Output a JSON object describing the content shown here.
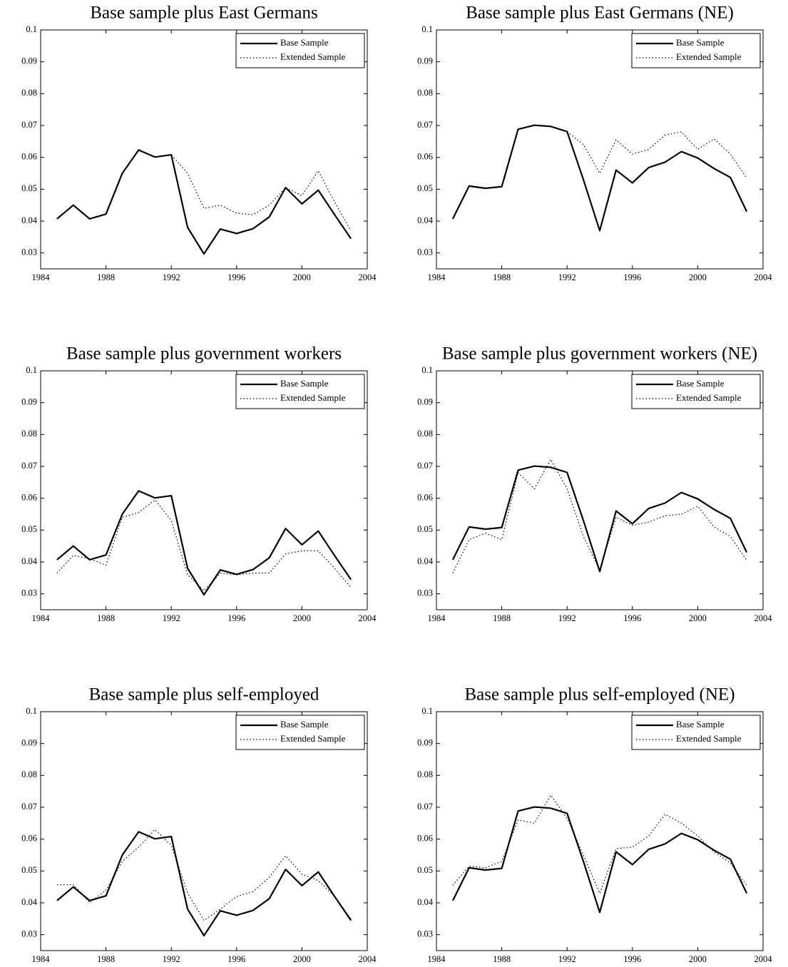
{
  "chart_data": [
    {
      "type": "line",
      "title": "Base sample plus East Germans",
      "x": [
        1985,
        1986,
        1987,
        1988,
        1989,
        1990,
        1991,
        1992,
        1993,
        1994,
        1995,
        1996,
        1997,
        1998,
        1999,
        2000,
        2001,
        2002,
        2003
      ],
      "series": [
        {
          "name": "Base Sample",
          "color": "#000000",
          "style": "solid",
          "values": [
            0.0407,
            0.045,
            0.0407,
            0.0422,
            0.055,
            0.0623,
            0.0601,
            0.0608,
            0.038,
            0.0297,
            0.0375,
            0.0361,
            0.0376,
            0.0413,
            0.0505,
            0.0454,
            0.0497,
            0.042,
            0.0345
          ]
        },
        {
          "name": "Extended Sample",
          "color": "#000000",
          "style": "dotted",
          "values": [
            0.0407,
            0.045,
            0.0407,
            0.0422,
            0.055,
            0.0623,
            0.0601,
            0.0608,
            0.055,
            0.044,
            0.045,
            0.0425,
            0.042,
            0.045,
            0.0505,
            0.048,
            0.0558,
            0.046,
            0.037
          ]
        }
      ],
      "xlim": [
        1984,
        2004
      ],
      "xticks": [
        1984,
        1988,
        1992,
        1996,
        2000,
        2004
      ],
      "ylim": [
        0.025,
        0.1
      ],
      "yticks": [
        0.03,
        0.04,
        0.05,
        0.06,
        0.07,
        0.08,
        0.09,
        0.1
      ],
      "legend": "upper right"
    },
    {
      "type": "line",
      "title": "Base sample plus East Germans (NE)",
      "x": [
        1985,
        1986,
        1987,
        1988,
        1989,
        1990,
        1991,
        1992,
        1993,
        1994,
        1995,
        1996,
        1997,
        1998,
        1999,
        2000,
        2001,
        2002,
        2003
      ],
      "series": [
        {
          "name": "Base Sample",
          "color": "#000000",
          "style": "solid",
          "values": [
            0.0407,
            0.051,
            0.0503,
            0.0508,
            0.0688,
            0.0701,
            0.0697,
            0.0681,
            0.053,
            0.037,
            0.056,
            0.052,
            0.0568,
            0.0585,
            0.0618,
            0.0598,
            0.0565,
            0.0537,
            0.043
          ]
        },
        {
          "name": "Extended Sample",
          "color": "#000000",
          "style": "dotted",
          "values": [
            0.0407,
            0.051,
            0.0503,
            0.0508,
            0.0688,
            0.0701,
            0.0697,
            0.0681,
            0.064,
            0.055,
            0.0655,
            0.061,
            0.0625,
            0.067,
            0.068,
            0.0625,
            0.0658,
            0.061,
            0.0535
          ]
        }
      ],
      "xlim": [
        1984,
        2004
      ],
      "xticks": [
        1984,
        1988,
        1992,
        1996,
        2000,
        2004
      ],
      "ylim": [
        0.025,
        0.1
      ],
      "yticks": [
        0.03,
        0.04,
        0.05,
        0.06,
        0.07,
        0.08,
        0.09,
        0.1
      ],
      "legend": "upper right"
    },
    {
      "type": "line",
      "title": "Base sample plus government workers",
      "x": [
        1985,
        1986,
        1987,
        1988,
        1989,
        1990,
        1991,
        1992,
        1993,
        1994,
        1995,
        1996,
        1997,
        1998,
        1999,
        2000,
        2001,
        2002,
        2003
      ],
      "series": [
        {
          "name": "Base Sample",
          "color": "#000000",
          "style": "solid",
          "values": [
            0.0407,
            0.045,
            0.0407,
            0.0422,
            0.055,
            0.0623,
            0.0601,
            0.0608,
            0.038,
            0.0297,
            0.0375,
            0.0361,
            0.0376,
            0.0413,
            0.0505,
            0.0454,
            0.0497,
            0.042,
            0.0345
          ]
        },
        {
          "name": "Extended Sample",
          "color": "#000000",
          "style": "dotted",
          "values": [
            0.0365,
            0.042,
            0.041,
            0.039,
            0.054,
            0.0555,
            0.0595,
            0.053,
            0.036,
            0.031,
            0.0365,
            0.036,
            0.0365,
            0.0365,
            0.0425,
            0.0435,
            0.0435,
            0.038,
            0.032
          ]
        }
      ],
      "xlim": [
        1984,
        2004
      ],
      "xticks": [
        1984,
        1988,
        1992,
        1996,
        2000,
        2004
      ],
      "ylim": [
        0.025,
        0.1
      ],
      "yticks": [
        0.03,
        0.04,
        0.05,
        0.06,
        0.07,
        0.08,
        0.09,
        0.1
      ],
      "legend": "upper right"
    },
    {
      "type": "line",
      "title": "Base sample plus government workers (NE)",
      "x": [
        1985,
        1986,
        1987,
        1988,
        1989,
        1990,
        1991,
        1992,
        1993,
        1994,
        1995,
        1996,
        1997,
        1998,
        1999,
        2000,
        2001,
        2002,
        2003
      ],
      "series": [
        {
          "name": "Base Sample",
          "color": "#000000",
          "style": "solid",
          "values": [
            0.0407,
            0.051,
            0.0503,
            0.0508,
            0.0688,
            0.0701,
            0.0697,
            0.0681,
            0.053,
            0.037,
            0.056,
            0.052,
            0.0568,
            0.0585,
            0.0618,
            0.0598,
            0.0565,
            0.0537,
            0.043
          ]
        },
        {
          "name": "Extended Sample",
          "color": "#000000",
          "style": "dotted",
          "values": [
            0.0365,
            0.047,
            0.049,
            0.047,
            0.068,
            0.063,
            0.0722,
            0.063,
            0.048,
            0.0375,
            0.054,
            0.0515,
            0.0525,
            0.0545,
            0.055,
            0.0575,
            0.051,
            0.048,
            0.0405
          ]
        }
      ],
      "xlim": [
        1984,
        2004
      ],
      "xticks": [
        1984,
        1988,
        1992,
        1996,
        2000,
        2004
      ],
      "ylim": [
        0.025,
        0.1
      ],
      "yticks": [
        0.03,
        0.04,
        0.05,
        0.06,
        0.07,
        0.08,
        0.09,
        0.1
      ],
      "legend": "upper right"
    },
    {
      "type": "line",
      "title": "Base sample plus self-employed",
      "x": [
        1985,
        1986,
        1987,
        1988,
        1989,
        1990,
        1991,
        1992,
        1993,
        1994,
        1995,
        1996,
        1997,
        1998,
        1999,
        2000,
        2001,
        2002,
        2003
      ],
      "series": [
        {
          "name": "Base Sample",
          "color": "#000000",
          "style": "solid",
          "values": [
            0.0407,
            0.045,
            0.0407,
            0.0422,
            0.055,
            0.0623,
            0.0601,
            0.0608,
            0.038,
            0.0297,
            0.0375,
            0.0361,
            0.0376,
            0.0413,
            0.0505,
            0.0454,
            0.0497,
            0.042,
            0.0345
          ]
        },
        {
          "name": "Extended Sample",
          "color": "#000000",
          "style": "dotted",
          "values": [
            0.0457,
            0.0457,
            0.04,
            0.044,
            0.053,
            0.0575,
            0.063,
            0.058,
            0.043,
            0.0345,
            0.038,
            0.042,
            0.0435,
            0.048,
            0.0548,
            0.049,
            0.047,
            0.042,
            0.035
          ]
        }
      ],
      "xlim": [
        1984,
        2004
      ],
      "xticks": [
        1984,
        1988,
        1992,
        1996,
        2000,
        2004
      ],
      "ylim": [
        0.025,
        0.1
      ],
      "yticks": [
        0.03,
        0.04,
        0.05,
        0.06,
        0.07,
        0.08,
        0.09,
        0.1
      ],
      "legend": "upper right"
    },
    {
      "type": "line",
      "title": "Base sample plus self-employed (NE)",
      "x": [
        1985,
        1986,
        1987,
        1988,
        1989,
        1990,
        1991,
        1992,
        1993,
        1994,
        1995,
        1996,
        1997,
        1998,
        1999,
        2000,
        2001,
        2002,
        2003
      ],
      "series": [
        {
          "name": "Base Sample",
          "color": "#000000",
          "style": "solid",
          "values": [
            0.0407,
            0.051,
            0.0503,
            0.0508,
            0.0688,
            0.0701,
            0.0697,
            0.0681,
            0.053,
            0.037,
            0.056,
            0.052,
            0.0568,
            0.0585,
            0.0618,
            0.0598,
            0.0565,
            0.0537,
            0.043
          ]
        },
        {
          "name": "Extended Sample",
          "color": "#000000",
          "style": "dotted",
          "values": [
            0.0455,
            0.0515,
            0.051,
            0.053,
            0.066,
            0.065,
            0.0738,
            0.0665,
            0.055,
            0.043,
            0.057,
            0.0575,
            0.061,
            0.0678,
            0.065,
            0.061,
            0.056,
            0.0525,
            0.0455
          ]
        }
      ],
      "xlim": [
        1984,
        2004
      ],
      "xticks": [
        1984,
        1988,
        1992,
        1996,
        2000,
        2004
      ],
      "ylim": [
        0.025,
        0.1
      ],
      "yticks": [
        0.03,
        0.04,
        0.05,
        0.06,
        0.07,
        0.08,
        0.09,
        0.1
      ],
      "legend": "upper right"
    }
  ]
}
